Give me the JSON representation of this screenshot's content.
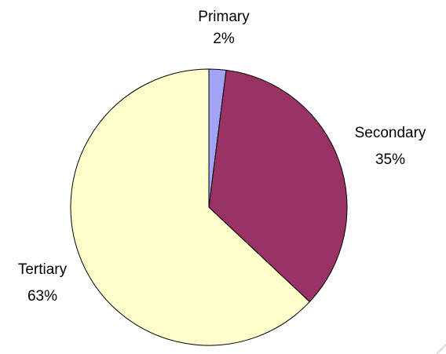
{
  "chart_data": {
    "type": "pie",
    "title": "",
    "slices": [
      {
        "label": "Primary",
        "value": 2,
        "value_label": "2%",
        "color": "#a3a3f5"
      },
      {
        "label": "Secondary",
        "value": 35,
        "value_label": "35%",
        "color": "#993366"
      },
      {
        "label": "Tertiary",
        "value": 63,
        "value_label": "63%",
        "color": "#ffffcc"
      }
    ],
    "start_angle_deg": 0,
    "direction": "clockwise",
    "legend": "none",
    "labels": "outside"
  }
}
